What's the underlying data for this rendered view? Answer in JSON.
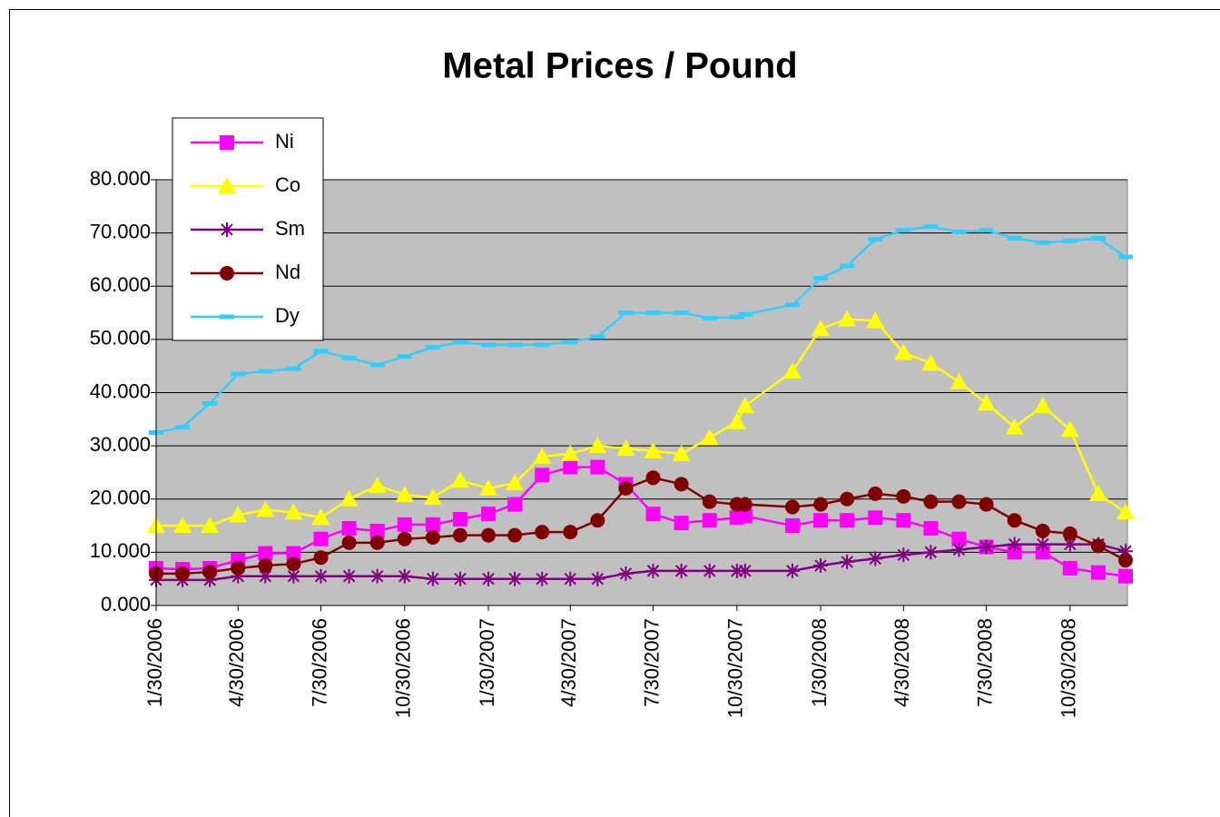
{
  "chart_data": {
    "type": "line",
    "title": "Metal Prices / Pound",
    "x": [
      "1/30/2006",
      "2/28/2006",
      "3/30/2006",
      "4/30/2006",
      "5/30/2006",
      "6/30/2006",
      "7/30/2006",
      "8/30/2006",
      "9/30/2006",
      "10/30/2006",
      "11/30/2006",
      "12/30/2006",
      "1/30/2007",
      "2/28/2007",
      "3/30/2007",
      "4/30/2007",
      "5/30/2007",
      "6/30/2007",
      "7/30/2007",
      "8/30/2007",
      "9/30/2007",
      "10/30/2007",
      "11/8/2007",
      "12/30/2007",
      "1/30/2008",
      "2/28/2008",
      "3/30/2008",
      "4/30/2008",
      "5/30/2008",
      "6/30/2008",
      "7/30/2008",
      "8/30/2008",
      "9/30/2008",
      "10/30/2008",
      "11/30/2008",
      "12/30/2008"
    ],
    "xlim": [
      "1/30/2006",
      "1/1/2009"
    ],
    "xticks": [
      "1/30/2006",
      "4/30/2006",
      "7/30/2006",
      "10/30/2006",
      "1/30/2007",
      "4/30/2007",
      "7/30/2007",
      "10/30/2007",
      "1/30/2008",
      "4/30/2008",
      "7/30/2008",
      "10/30/2008"
    ],
    "ylim": [
      0,
      80
    ],
    "yticks": [
      {
        "value": 0,
        "label": "0.000"
      },
      {
        "value": 10,
        "label": "10.000"
      },
      {
        "value": 20,
        "label": "20.000"
      },
      {
        "value": 30,
        "label": "30.000"
      },
      {
        "value": 40,
        "label": "40.000"
      },
      {
        "value": 50,
        "label": "50.000"
      },
      {
        "value": 60,
        "label": "60.000"
      },
      {
        "value": 70,
        "label": "70.000"
      },
      {
        "value": 80,
        "label": "80.000"
      }
    ],
    "grid": true,
    "series": [
      {
        "name": "Ni",
        "color": "#FF00FF",
        "marker": "square",
        "values": [
          7,
          6.8,
          7,
          8.5,
          9.8,
          9.8,
          12.5,
          14.5,
          14,
          15.2,
          15.2,
          16.2,
          17.2,
          19,
          24.5,
          26,
          26,
          22.8,
          17.2,
          15.5,
          16,
          16.5,
          16.8,
          15,
          16,
          16,
          16.5,
          16,
          14.5,
          12.5,
          11,
          10,
          10,
          7,
          6.2,
          5.5
        ]
      },
      {
        "name": "Co",
        "color": "#FFFF00",
        "marker": "triangle",
        "values": [
          15,
          15,
          15,
          17,
          18,
          17.5,
          16.5,
          20,
          22.5,
          20.8,
          20.3,
          23.5,
          22,
          23,
          28,
          28.5,
          30,
          29.5,
          29,
          28.5,
          31.5,
          34.5,
          37.5,
          44,
          52,
          53.8,
          53.5,
          47.5,
          45.5,
          42,
          38,
          33.5,
          37.5,
          33,
          21,
          17.5
        ]
      },
      {
        "name": "Sm",
        "color": "#800080",
        "marker": "star",
        "values": [
          4.8,
          4.8,
          4.8,
          5.5,
          5.5,
          5.5,
          5.5,
          5.5,
          5.5,
          5.5,
          5,
          5,
          5,
          5,
          5,
          5,
          5,
          6,
          6.5,
          6.5,
          6.5,
          6.5,
          6.5,
          6.5,
          7.5,
          8.2,
          8.8,
          9.5,
          10,
          10.5,
          11,
          11.5,
          11.5,
          11.5,
          11.5,
          10.2
        ]
      },
      {
        "name": "Nd",
        "color": "#800000",
        "marker": "circle",
        "values": [
          6,
          6,
          6.3,
          7,
          7.5,
          7.8,
          9,
          11.8,
          11.8,
          12.5,
          12.8,
          13.2,
          13.2,
          13.2,
          13.8,
          13.8,
          16,
          22,
          24,
          22.8,
          19.5,
          19,
          19,
          18.5,
          19,
          20,
          21,
          20.5,
          19.5,
          19.5,
          19,
          16,
          14,
          13.5,
          11.2,
          8.5
        ]
      },
      {
        "name": "Dy",
        "color": "#33CCFF",
        "marker": "dash",
        "values": [
          32.5,
          33.5,
          38,
          43.5,
          44,
          44.5,
          47.8,
          46.5,
          45.2,
          46.8,
          48.5,
          49.5,
          49,
          49,
          49,
          49.5,
          50.5,
          55,
          55,
          55,
          54,
          54.2,
          54.7,
          56.5,
          61.5,
          63.8,
          68.8,
          70.5,
          71.2,
          70.2,
          70.5,
          69,
          68.2,
          68.5,
          69,
          65.5
        ]
      }
    ]
  }
}
